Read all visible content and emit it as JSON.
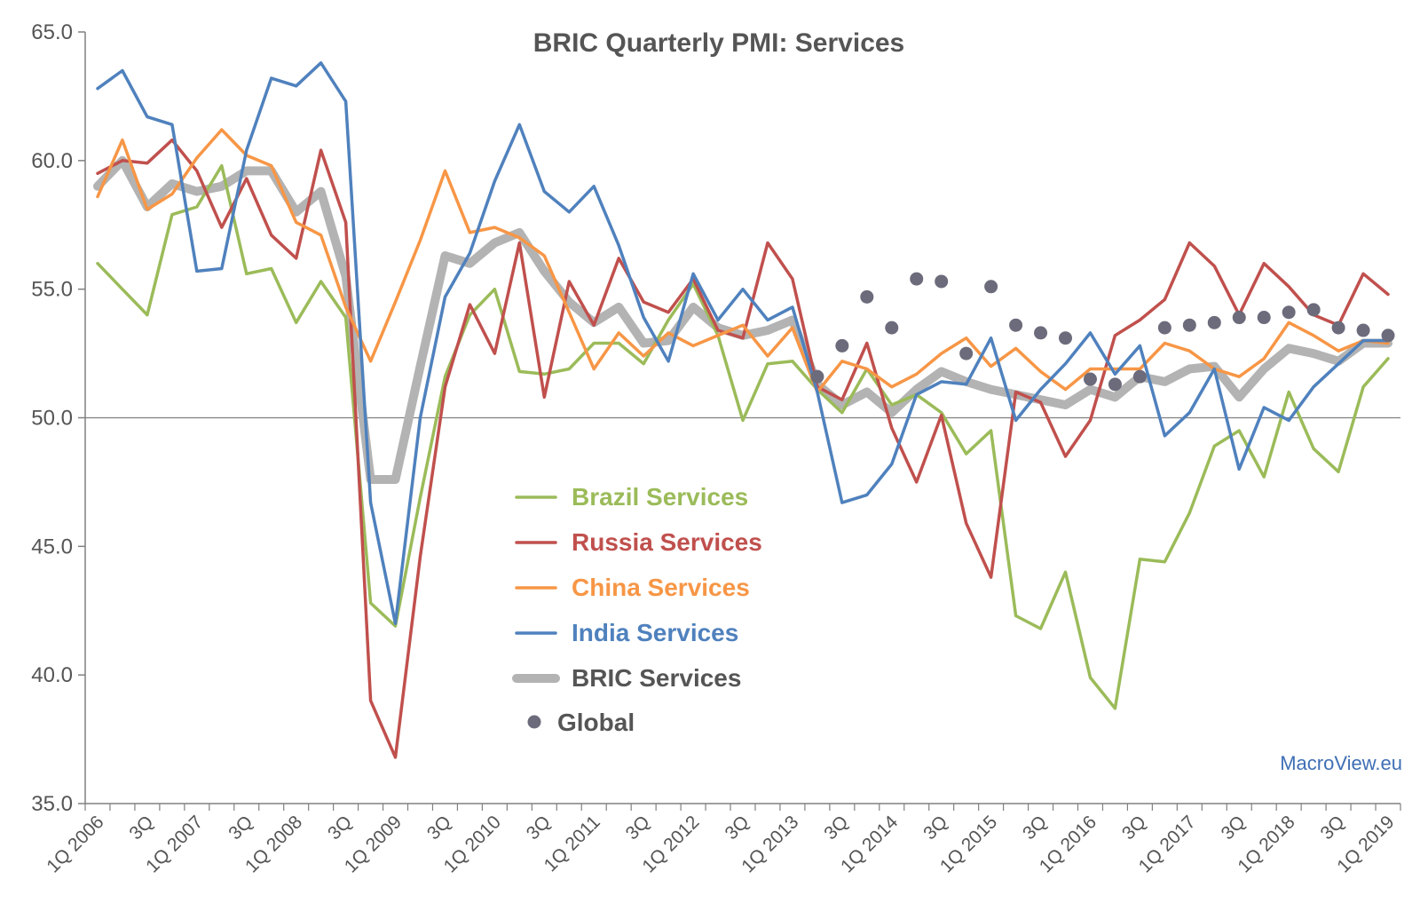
{
  "chart_data": {
    "type": "line",
    "title": "BRIC Quarterly PMI: Services",
    "watermark": "MacroView.eu",
    "xlabel": "",
    "ylabel": "",
    "ylim": [
      35,
      65
    ],
    "yticks": [
      "35.0",
      "40.0",
      "45.0",
      "50.0",
      "55.0",
      "60.0",
      "65.0"
    ],
    "reference_line": 50,
    "grid": false,
    "legend_position": "center-left",
    "categories": [
      "1Q 2006",
      "2Q 2006",
      "3Q 2006",
      "4Q 2006",
      "1Q 2007",
      "2Q 2007",
      "3Q 2007",
      "4Q 2007",
      "1Q 2008",
      "2Q 2008",
      "3Q 2008",
      "4Q 2008",
      "1Q 2009",
      "2Q 2009",
      "3Q 2009",
      "4Q 2009",
      "1Q 2010",
      "2Q 2010",
      "3Q 2010",
      "4Q 2010",
      "1Q 2011",
      "2Q 2011",
      "3Q 2011",
      "4Q 2011",
      "1Q 2012",
      "2Q 2012",
      "3Q 2012",
      "4Q 2012",
      "1Q 2013",
      "2Q 2013",
      "3Q 2013",
      "4Q 2013",
      "1Q 2014",
      "2Q 2014",
      "3Q 2014",
      "4Q 2014",
      "1Q 2015",
      "2Q 2015",
      "3Q 2015",
      "4Q 2015",
      "1Q 2016",
      "2Q 2016",
      "3Q 2016",
      "4Q 2016",
      "1Q 2017",
      "2Q 2017",
      "3Q 2017",
      "4Q 2017",
      "1Q 2018",
      "2Q 2018",
      "3Q 2018",
      "4Q 2018",
      "1Q 2019"
    ],
    "tick_labels": [
      "1Q 2006",
      "3Q",
      "1Q 2007",
      "3Q",
      "1Q 2008",
      "3Q",
      "1Q 2009",
      "3Q",
      "1Q 2010",
      "3Q",
      "1Q 2011",
      "3Q",
      "1Q 2012",
      "3Q",
      "1Q 2013",
      "3Q",
      "1Q 2014",
      "3Q",
      "1Q 2015",
      "3Q",
      "1Q 2016",
      "3Q",
      "1Q 2017",
      "3Q",
      "1Q 2018",
      "3Q",
      "1Q 2019"
    ],
    "series": [
      {
        "name": "Brazil Services",
        "color": "#9bbb59",
        "width": 3.5,
        "style": "line",
        "values": [
          56.0,
          55.0,
          54.0,
          57.9,
          58.2,
          59.8,
          55.6,
          55.8,
          53.7,
          55.3,
          53.9,
          42.8,
          41.9,
          46.9,
          51.6,
          54.0,
          55.0,
          51.8,
          51.7,
          51.9,
          52.9,
          52.9,
          52.1,
          53.8,
          55.2,
          53.2,
          49.9,
          52.1,
          52.2,
          51.1,
          50.2,
          51.9,
          50.5,
          50.9,
          50.2,
          48.6,
          49.5,
          42.3,
          41.8,
          44.0,
          39.9,
          38.7,
          44.5,
          44.4,
          46.3,
          48.9,
          49.5,
          47.7,
          51.0,
          48.8,
          47.9,
          51.2,
          52.3
        ]
      },
      {
        "name": "Russia Services",
        "color": "#c0504d",
        "width": 3.5,
        "style": "line",
        "values": [
          59.5,
          60.0,
          59.9,
          60.8,
          59.6,
          57.4,
          59.3,
          57.1,
          56.2,
          60.4,
          57.6,
          39.0,
          36.8,
          44.6,
          51.2,
          54.4,
          52.5,
          56.8,
          50.8,
          55.3,
          53.6,
          56.2,
          54.5,
          54.1,
          55.4,
          53.4,
          53.1,
          56.8,
          55.4,
          51.2,
          50.7,
          52.9,
          49.6,
          47.5,
          50.1,
          45.9,
          43.8,
          51.0,
          50.6,
          48.5,
          49.9,
          53.2,
          53.8,
          54.6,
          56.8,
          55.9,
          54.0,
          56.0,
          55.1,
          54.0,
          53.6,
          55.6,
          54.8
        ]
      },
      {
        "name": "China Services",
        "color": "#f79646",
        "width": 3.5,
        "style": "line",
        "values": [
          58.6,
          60.8,
          58.1,
          58.7,
          60.1,
          61.2,
          60.2,
          59.8,
          57.6,
          57.1,
          54.3,
          52.2,
          54.5,
          56.9,
          59.6,
          57.2,
          57.4,
          57.0,
          56.3,
          54.1,
          51.9,
          53.3,
          52.4,
          53.3,
          52.8,
          53.2,
          53.6,
          52.4,
          53.5,
          51.0,
          52.2,
          51.9,
          51.2,
          51.7,
          52.5,
          53.1,
          52.0,
          52.7,
          51.8,
          51.1,
          51.9,
          51.9,
          51.9,
          52.9,
          52.6,
          51.9,
          51.6,
          52.3,
          53.7,
          53.2,
          52.6,
          53.0,
          52.9
        ]
      },
      {
        "name": "India Services",
        "color": "#4f81bd",
        "width": 3.5,
        "style": "line",
        "values": [
          62.8,
          63.5,
          61.7,
          61.4,
          55.7,
          55.8,
          60.4,
          63.2,
          62.9,
          63.8,
          62.3,
          46.7,
          42.0,
          50.0,
          54.7,
          56.4,
          59.2,
          61.4,
          58.8,
          58.0,
          59.0,
          56.7,
          53.9,
          52.2,
          55.6,
          53.8,
          55.0,
          53.8,
          54.3,
          51.0,
          46.7,
          47.0,
          48.2,
          50.9,
          51.4,
          51.3,
          53.1,
          49.9,
          51.1,
          52.1,
          53.3,
          51.7,
          52.8,
          49.3,
          50.2,
          51.9,
          48.0,
          50.4,
          49.9,
          51.2,
          52.1,
          53.0,
          53.0
        ]
      },
      {
        "name": "BRIC Services",
        "color": "#b3b3b3",
        "width": 10,
        "style": "line",
        "values": [
          59.0,
          60.0,
          58.2,
          59.1,
          58.8,
          59.0,
          59.6,
          59.6,
          58.0,
          58.8,
          55.5,
          47.6,
          47.6,
          52.0,
          56.3,
          56.0,
          56.8,
          57.2,
          55.7,
          54.5,
          53.7,
          54.3,
          52.9,
          53.0,
          54.3,
          53.5,
          53.2,
          53.4,
          53.8,
          51.3,
          50.5,
          51.0,
          50.2,
          51.1,
          51.8,
          51.4,
          51.1,
          50.9,
          50.7,
          50.5,
          51.1,
          50.8,
          51.6,
          51.4,
          51.9,
          52.0,
          50.8,
          51.9,
          52.7,
          52.5,
          52.2,
          52.9,
          52.9
        ]
      },
      {
        "name": "Global",
        "color": "#6b6b7b",
        "style": "dots",
        "values": [
          null,
          null,
          null,
          null,
          null,
          null,
          null,
          null,
          null,
          null,
          null,
          null,
          null,
          null,
          null,
          null,
          null,
          null,
          null,
          null,
          null,
          null,
          null,
          null,
          null,
          null,
          null,
          null,
          null,
          51.6,
          52.8,
          54.7,
          53.5,
          55.4,
          55.3,
          52.5,
          55.1,
          53.6,
          53.3,
          53.1,
          51.5,
          51.3,
          51.6,
          53.5,
          53.6,
          53.7,
          53.9,
          53.9,
          54.1,
          54.2,
          53.5,
          53.4,
          53.2
        ]
      }
    ]
  }
}
